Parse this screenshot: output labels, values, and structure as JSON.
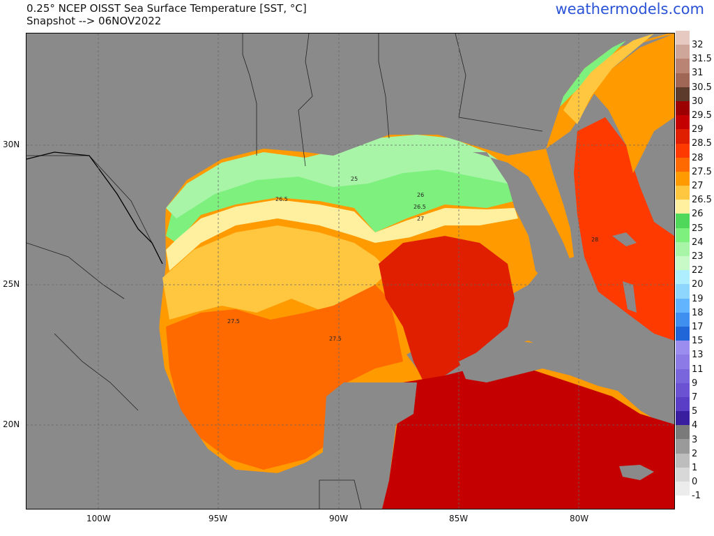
{
  "header": {
    "title_line1": "0.25° NCEP OISST Sea Surface Temperature [SST, °C]",
    "title_line2": "Snapshot --> 06NOV2022",
    "brand": "weathermodels.com"
  },
  "map": {
    "lat_labels": [
      "30N",
      "25N",
      "20N"
    ],
    "lon_labels": [
      "100W",
      "95W",
      "90W",
      "85W",
      "80W"
    ],
    "contour_labels": [
      "25",
      "26",
      "26.5",
      "26.5",
      "27",
      "28",
      "27.5",
      "27.5"
    ]
  },
  "colorbar": {
    "labels": [
      "32",
      "31.5",
      "31",
      "30.5",
      "30",
      "29.5",
      "29",
      "28.5",
      "28",
      "27.5",
      "27",
      "26.5",
      "26",
      "25",
      "24",
      "23",
      "22",
      "20",
      "19",
      "18",
      "17",
      "15",
      "13",
      "11",
      "9",
      "7",
      "5",
      "4",
      "3",
      "2",
      "1",
      "0",
      "-1"
    ],
    "colors": [
      "#e6c9c0",
      "#cfa69a",
      "#b98474",
      "#a06656",
      "#5c3a2c",
      "#9c0000",
      "#c40000",
      "#e01e00",
      "#ff3a00",
      "#ff6a00",
      "#ff9a00",
      "#ffc640",
      "#fff0a0",
      "#4fd85a",
      "#7ef07e",
      "#a8f5a8",
      "#c8fac8",
      "#aeeeff",
      "#8fd6ff",
      "#63b4ff",
      "#3e8ff0",
      "#2066d8",
      "#9b8cf0",
      "#8c7ae6",
      "#7a66dc",
      "#6a52d2",
      "#5a3ec6",
      "#3a1ea0",
      "#7a7a7a",
      "#9a9a9a",
      "#bdbdbd",
      "#d8d8d8",
      "#ececec"
    ]
  }
}
